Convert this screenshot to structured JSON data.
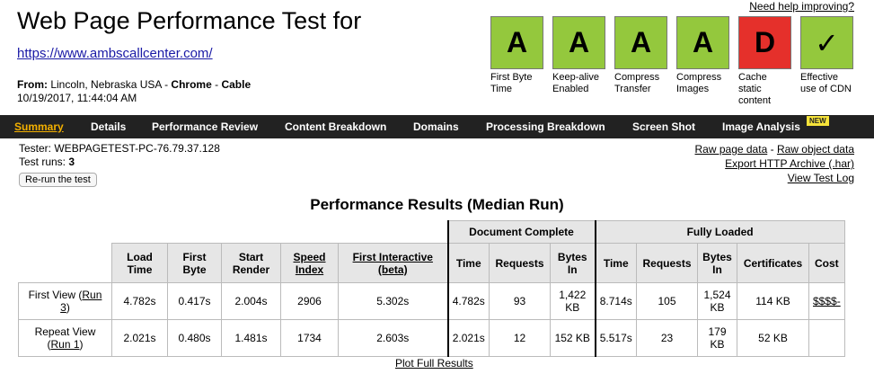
{
  "header": {
    "title": "Web Page Performance Test for",
    "url": "https://www.ambscallcenter.com/",
    "from_label": "From:",
    "from_value": "Lincoln, Nebraska USA -",
    "browser": "Chrome",
    "sep": "-",
    "connection": "Cable",
    "datetime": "10/19/2017, 11:44:04 AM",
    "need_help": "Need help improving?"
  },
  "grades": [
    {
      "grade": "A",
      "label": "First Byte Time",
      "color": "#94c83d"
    },
    {
      "grade": "A",
      "label": "Keep-alive Enabled",
      "color": "#94c83d"
    },
    {
      "grade": "A",
      "label": "Compress Transfer",
      "color": "#94c83d"
    },
    {
      "grade": "A",
      "label": "Compress Images",
      "color": "#94c83d"
    },
    {
      "grade": "D",
      "label": "Cache static content",
      "color": "#e5302b"
    },
    {
      "grade": "✓",
      "label": "Effective use of CDN",
      "color": "#94c83d"
    }
  ],
  "nav": {
    "items": [
      "Summary",
      "Details",
      "Performance Review",
      "Content Breakdown",
      "Domains",
      "Processing Breakdown",
      "Screen Shot",
      "Image Analysis"
    ],
    "new_badge": "NEW"
  },
  "tester": {
    "tester_label": "Tester:",
    "tester_value": "WEBPAGETEST-PC-76.79.37.128",
    "runs_label": "Test runs:",
    "runs_value": "3",
    "rerun": "Re-run the test"
  },
  "links": {
    "raw_page": "Raw page data",
    "sep": "-",
    "raw_object": "Raw object data",
    "export": "Export HTTP Archive (.har)",
    "view_log": "View Test Log"
  },
  "results": {
    "title": "Performance Results (Median Run)",
    "group_doc": "Document Complete",
    "group_full": "Fully Loaded",
    "headers": {
      "load_time": "Load Time",
      "first_byte": "First Byte",
      "start_render": "Start Render",
      "speed_index": "Speed Index",
      "first_interactive": "First Interactive (beta)",
      "doc_time": "Time",
      "doc_requests": "Requests",
      "doc_bytes": "Bytes In",
      "full_time": "Time",
      "full_requests": "Requests",
      "full_bytes": "Bytes In",
      "certificates": "Certificates",
      "cost": "Cost"
    },
    "rows": [
      {
        "label": "First View (",
        "run_link": "Run 3",
        "label_end": ")",
        "load_time": "4.782s",
        "first_byte": "0.417s",
        "start_render": "2.004s",
        "speed_index": "2906",
        "first_interactive": "5.302s",
        "doc_time": "4.782s",
        "doc_requests": "93",
        "doc_bytes": "1,422 KB",
        "full_time": "8.714s",
        "full_requests": "105",
        "full_bytes": "1,524 KB",
        "certificates": "114 KB",
        "cost": "$$$$-"
      },
      {
        "label": "Repeat View (",
        "run_link": "Run 1",
        "label_end": ")",
        "load_time": "2.021s",
        "first_byte": "0.480s",
        "start_render": "1.481s",
        "speed_index": "1734",
        "first_interactive": "2.603s",
        "doc_time": "2.021s",
        "doc_requests": "12",
        "doc_bytes": "152 KB",
        "full_time": "5.517s",
        "full_requests": "23",
        "full_bytes": "179 KB",
        "certificates": "52 KB",
        "cost": ""
      }
    ],
    "plot_link": "Plot Full Results"
  }
}
